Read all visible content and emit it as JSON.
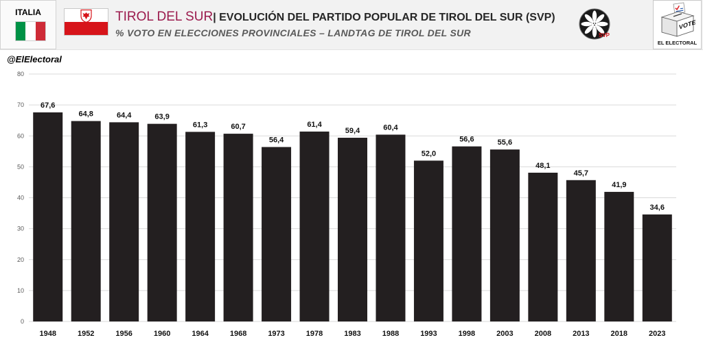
{
  "country": {
    "label": "ITALIA",
    "flag_icon": "italy-flag-icon"
  },
  "region": {
    "flag_icon": "south-tyrol-flag-icon"
  },
  "party_logo": {
    "icon": "svp-edelweiss-logo",
    "text": "SVP"
  },
  "brand_logo": {
    "icon": "ballot-box-logo",
    "ballot_text": "VOTE",
    "name": "EL ELECTORAL"
  },
  "handle": "@ElElectoral",
  "colors": {
    "header_bg": "#f2f2f2",
    "title_accent": "#9b1b4d",
    "title_text": "#262626",
    "subtitle_text": "#595959",
    "bar": "#231f20",
    "grid": "#d9d9d9",
    "tick_text": "#595959",
    "italy_green": "#009246",
    "italy_white": "#ffffff",
    "italy_red": "#ce2b37",
    "tyrol_red": "#d7141a"
  },
  "chart_data": {
    "type": "bar",
    "title": {
      "region": "TIROL DEL SUR",
      "text": "| EVOLUCIÓN DEL PARTIDO POPULAR DE TIROL DEL SUR (SVP)"
    },
    "subtitle": "% VOTO EN ELECCIONES PROVINCIALES – LANDTAG DE TIROL DEL SUR",
    "xlabel": "",
    "ylabel": "",
    "categories": [
      "1948",
      "1952",
      "1956",
      "1960",
      "1964",
      "1968",
      "1973",
      "1978",
      "1983",
      "1988",
      "1993",
      "1998",
      "2003",
      "2008",
      "2013",
      "2018",
      "2023"
    ],
    "values": [
      67.6,
      64.8,
      64.4,
      63.9,
      61.3,
      60.7,
      56.4,
      61.4,
      59.4,
      60.4,
      52.0,
      56.6,
      55.6,
      48.1,
      45.7,
      41.9,
      34.6
    ],
    "data_labels": [
      "67,6",
      "64,8",
      "64,4",
      "63,9",
      "61,3",
      "60,7",
      "56,4",
      "61,4",
      "59,4",
      "60,4",
      "52,0",
      "56,6",
      "55,6",
      "48,1",
      "45,7",
      "41,9",
      "34,6"
    ],
    "ylim": [
      0,
      80
    ],
    "yticks": [
      0,
      10,
      20,
      30,
      40,
      50,
      60,
      70,
      80
    ],
    "grid": true,
    "legend": "none"
  }
}
